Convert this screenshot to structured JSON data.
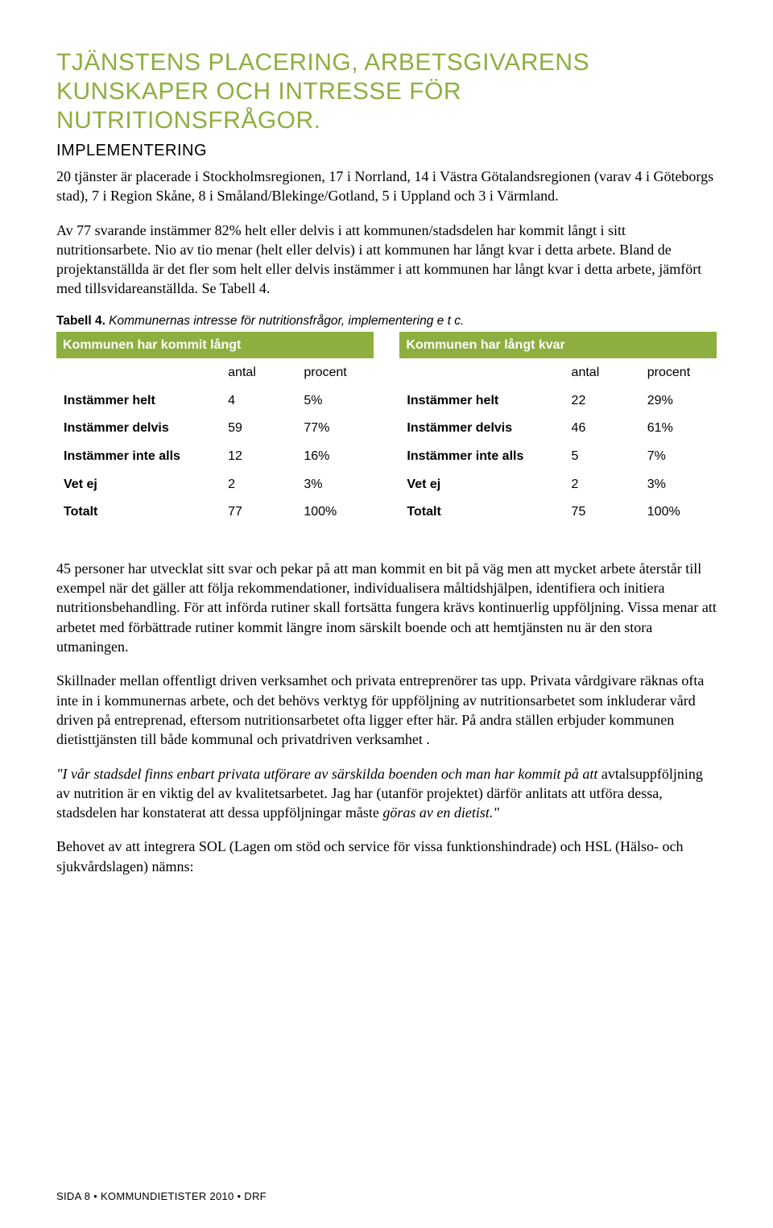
{
  "heading": "TJÄNSTENS PLACERING, ARBETSGIVARENS KUNSKAPER OCH INTRESSE FÖR NUTRITIONSFRÅGOR.",
  "subheading": "IMPLEMENTERING",
  "para1": "20 tjänster är placerade i Stockholmsregionen, 17 i Norrland, 14 i Västra Götalandsregionen (varav 4 i Göteborgs stad), 7 i Region Skåne, 8 i Småland/Blekinge/Gotland, 5 i Uppland och 3 i Värmland.",
  "para2": "Av 77 svarande instämmer 82% helt eller delvis i att kommunen/stadsdelen har kommit långt i sitt nutritionsarbete. Nio av tio menar (helt eller delvis) i att kommunen har långt kvar i detta arbete. Bland de projektanställda är det fler som helt eller delvis instämmer i att kommunen har långt kvar i detta arbete, jämfört med tillsvidareanställda. Se Tabell 4.",
  "table_caption_bold": "Tabell 4.",
  "table_caption_ital": " Kommunernas intresse för nutritionsfrågor, implementering e t c.",
  "colors": {
    "accent": "#8daf3f",
    "bg": "#ffffff",
    "text": "#000000"
  },
  "tables": {
    "left": {
      "title": "Kommunen har kommit långt",
      "headers": [
        "",
        "antal",
        "procent"
      ],
      "rows": [
        [
          "Instämmer helt",
          "4",
          "5%"
        ],
        [
          "Instämmer delvis",
          "59",
          "77%"
        ],
        [
          "Instämmer inte alls",
          "12",
          "16%"
        ],
        [
          "Vet ej",
          "2",
          "3%"
        ],
        [
          "Totalt",
          "77",
          "100%"
        ]
      ]
    },
    "right": {
      "title": "Kommunen har långt kvar",
      "headers": [
        "",
        "antal",
        "procent"
      ],
      "rows": [
        [
          "Instämmer helt",
          "22",
          "29%"
        ],
        [
          "Instämmer delvis",
          "46",
          "61%"
        ],
        [
          "Instämmer inte alls",
          "5",
          "7%"
        ],
        [
          "Vet ej",
          "2",
          "3%"
        ],
        [
          "Totalt",
          "75",
          "100%"
        ]
      ]
    }
  },
  "para3": "45 personer har utvecklat sitt svar och pekar på att man kommit en bit på väg men att mycket arbete återstår till exempel när det gäller att följa rekommendationer, individualisera måltidshjälpen, identifiera och initiera nutritionsbehandling. För att införda rutiner skall fortsätta fungera krävs kontinuerlig uppföljning. Vissa menar att arbetet med förbättrade rutiner kommit längre inom särskilt boende och att hemtjänsten nu är den stora utmaningen.",
  "para4": "Skillnader mellan offentligt driven verksamhet och privata entreprenörer tas upp. Privata vårdgivare räknas ofta inte in i kommunernas arbete, och det behövs verktyg för uppföljning av nutritionsarbetet som inkluderar vård driven på entreprenad, eftersom nutritionsarbetet ofta ligger efter här. På andra ställen erbjuder kommunen dietisttjänsten till både kommunal och privatdriven verksamhet .",
  "quote_ital1": "\"I vår stadsdel finns enbart privata utförare av särskilda boenden och man har kommit på att",
  "quote_plain": " avtalsuppföljning av nutrition är en viktig del av kvalitetsarbetet. Jag har (utanför projektet) därför anlitats att utföra dessa, stadsdelen har konstaterat att dessa uppföljningar måste",
  "quote_ital2": " göras av en dietist.\"",
  "para6": "Behovet av att integrera SOL (Lagen om stöd och service för vissa funktionshindrade) och HSL (Hälso- och sjukvårdslagen) nämns:",
  "footer": "SIDA 8 • KOMMUNDIETISTER 2010 • DRF"
}
